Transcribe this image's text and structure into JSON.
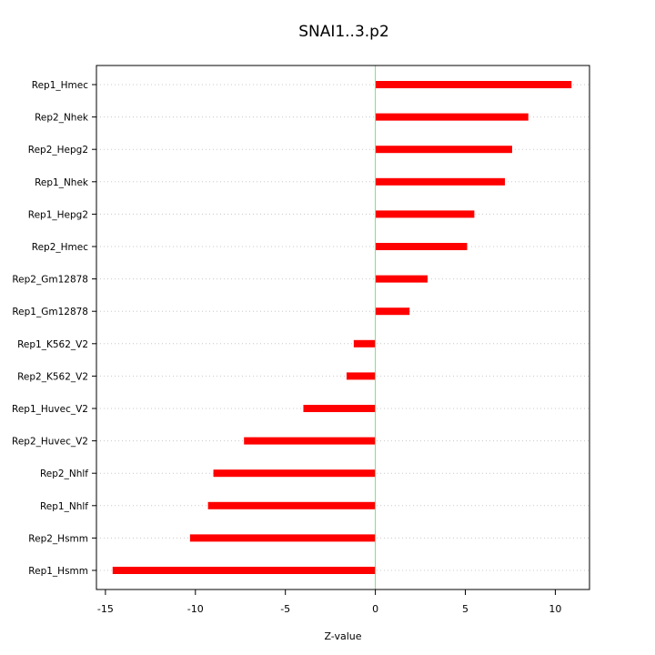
{
  "chart_data": {
    "type": "bar",
    "orientation": "horizontal",
    "title": "SNAI1..3.p2",
    "xlabel": "Z-value",
    "ylabel": "",
    "xlim": [
      -15.5,
      11.9
    ],
    "xticks": [
      -15,
      -10,
      -5,
      0,
      5,
      10
    ],
    "grid": "horizontal dotted",
    "legend": "none",
    "reference_line": {
      "x": 0,
      "color": "#7fdc7f"
    },
    "bar_color": "#ff0000",
    "categories": [
      "Rep1_Hmec",
      "Rep2_Nhek",
      "Rep2_Hepg2",
      "Rep1_Nhek",
      "Rep1_Hepg2",
      "Rep2_Hmec",
      "Rep2_Gm12878",
      "Rep1_Gm12878",
      "Rep1_K562_V2",
      "Rep2_K562_V2",
      "Rep1_Huvec_V2",
      "Rep2_Huvec_V2",
      "Rep2_Nhlf",
      "Rep1_Nhlf",
      "Rep2_Hsmm",
      "Rep1_Hsmm"
    ],
    "values": [
      10.9,
      8.5,
      7.6,
      7.2,
      5.5,
      5.1,
      2.9,
      1.9,
      -1.2,
      -1.6,
      -4.0,
      -7.3,
      -9.0,
      -9.3,
      -10.3,
      -14.6
    ]
  }
}
